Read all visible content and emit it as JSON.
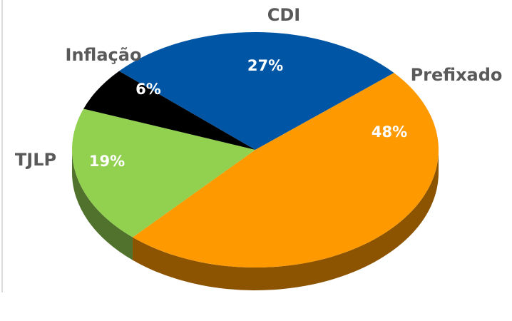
{
  "chart_data": {
    "type": "pie",
    "categories": [
      "CDI",
      "Prefixado",
      "TJLP",
      "Inflação"
    ],
    "values": [
      27,
      48,
      19,
      6
    ],
    "value_labels": [
      "27%",
      "48%",
      "19%",
      "6%"
    ],
    "colors": [
      "#0055a5",
      "#ff9900",
      "#92d050",
      "#000000"
    ]
  }
}
